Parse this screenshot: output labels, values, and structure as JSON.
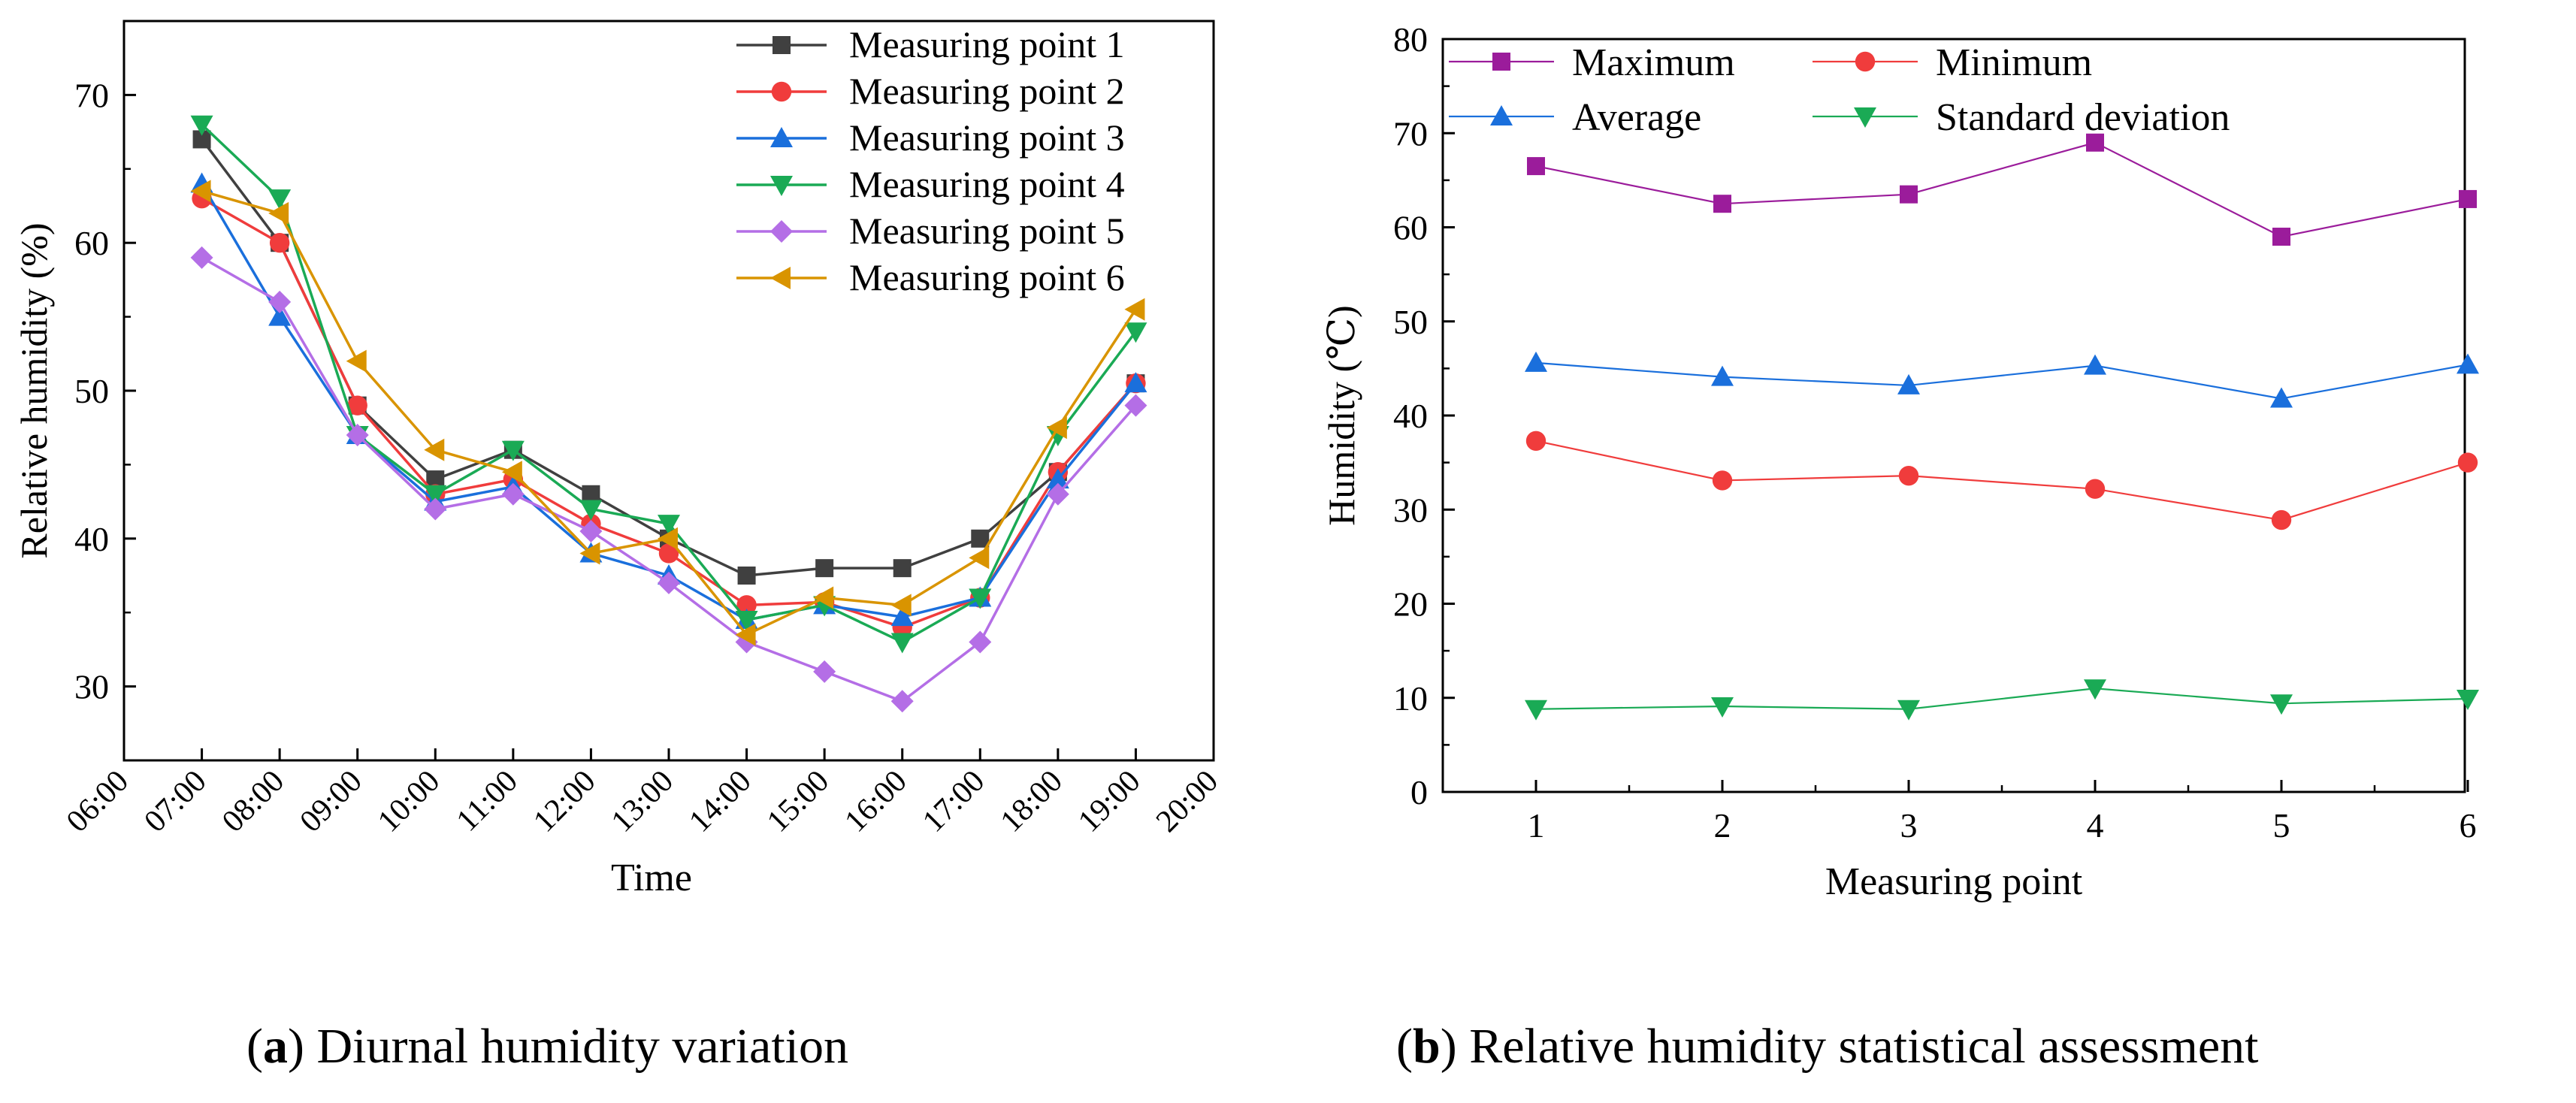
{
  "chart_data": [
    {
      "type": "line",
      "caption_letter": "a",
      "caption_text": "Diurnal humidity variation",
      "xlabel": "Time",
      "ylabel": "Relative humidity (%)",
      "ylim": [
        25,
        75
      ],
      "yticks": [
        30,
        40,
        50,
        60,
        70
      ],
      "x_tick_labels": [
        "06:00",
        "07:00",
        "08:00",
        "09:00",
        "10:00",
        "11:00",
        "12:00",
        "13:00",
        "14:00",
        "15:00",
        "16:00",
        "17:00",
        "18:00",
        "19:00",
        "20:00"
      ],
      "categories": [
        "07:00",
        "08:00",
        "09:00",
        "10:00",
        "11:00",
        "12:00",
        "13:00",
        "14:00",
        "15:00",
        "16:00",
        "17:00",
        "18:00",
        "19:00"
      ],
      "legend_position": "top-right",
      "series": [
        {
          "name": "Measuring point 1",
          "color": "#404040",
          "marker": "square",
          "values": [
            67,
            60,
            49,
            44,
            46,
            43,
            40,
            37.5,
            38,
            38,
            40,
            44.5,
            50.5
          ]
        },
        {
          "name": "Measuring point 2",
          "color": "#f03c3c",
          "marker": "circle",
          "values": [
            63,
            60,
            49,
            43,
            44,
            41,
            39,
            35.5,
            35.7,
            34,
            36,
            44.5,
            50.5
          ]
        },
        {
          "name": "Measuring point 3",
          "color": "#1a6fdc",
          "marker": "triangle-up",
          "values": [
            64,
            55,
            47,
            42.5,
            43.5,
            39,
            37.5,
            34.5,
            35.5,
            34.7,
            36,
            44,
            50.5
          ]
        },
        {
          "name": "Measuring point 4",
          "color": "#1aaa55",
          "marker": "triangle-down",
          "values": [
            68,
            63,
            47,
            43,
            46,
            42,
            41,
            34.5,
            35.5,
            33,
            36,
            47,
            54
          ]
        },
        {
          "name": "Measuring point 5",
          "color": "#b46ee6",
          "marker": "diamond",
          "values": [
            59,
            56,
            47,
            42,
            43,
            40.5,
            37,
            33,
            31,
            29,
            33,
            43,
            49
          ]
        },
        {
          "name": "Measuring point 6",
          "color": "#d99400",
          "marker": "triangle-left",
          "values": [
            63.5,
            62,
            52,
            46,
            44.5,
            39,
            40,
            33.5,
            36,
            35.5,
            38.7,
            47.5,
            55.5
          ]
        }
      ]
    },
    {
      "type": "line",
      "caption_letter": "b",
      "caption_text": "Relative humidity statistical assessment",
      "xlabel": "Measuring point",
      "ylabel": "Humidity (℃)",
      "ylim": [
        0,
        80
      ],
      "yticks": [
        0,
        10,
        20,
        30,
        40,
        50,
        60,
        70,
        80
      ],
      "categories": [
        "1",
        "2",
        "3",
        "4",
        "5",
        "6"
      ],
      "legend_position": "top",
      "series": [
        {
          "name": "Maximum",
          "color": "#9b1c9b",
          "marker": "square",
          "values": [
            66.5,
            62.5,
            63.5,
            69,
            59,
            63
          ]
        },
        {
          "name": "Minimum",
          "color": "#f03c3c",
          "marker": "circle",
          "values": [
            37.3,
            33.1,
            33.6,
            32.2,
            28.9,
            35
          ]
        },
        {
          "name": "Average",
          "color": "#1a6fdc",
          "marker": "triangle-up",
          "values": [
            45.6,
            44.1,
            43.2,
            45.3,
            41.8,
            45.4
          ]
        },
        {
          "name": "Standard deviation",
          "color": "#1aaa55",
          "marker": "triangle-down",
          "values": [
            8.8,
            9.1,
            8.8,
            11,
            9.4,
            9.9
          ]
        }
      ]
    }
  ]
}
